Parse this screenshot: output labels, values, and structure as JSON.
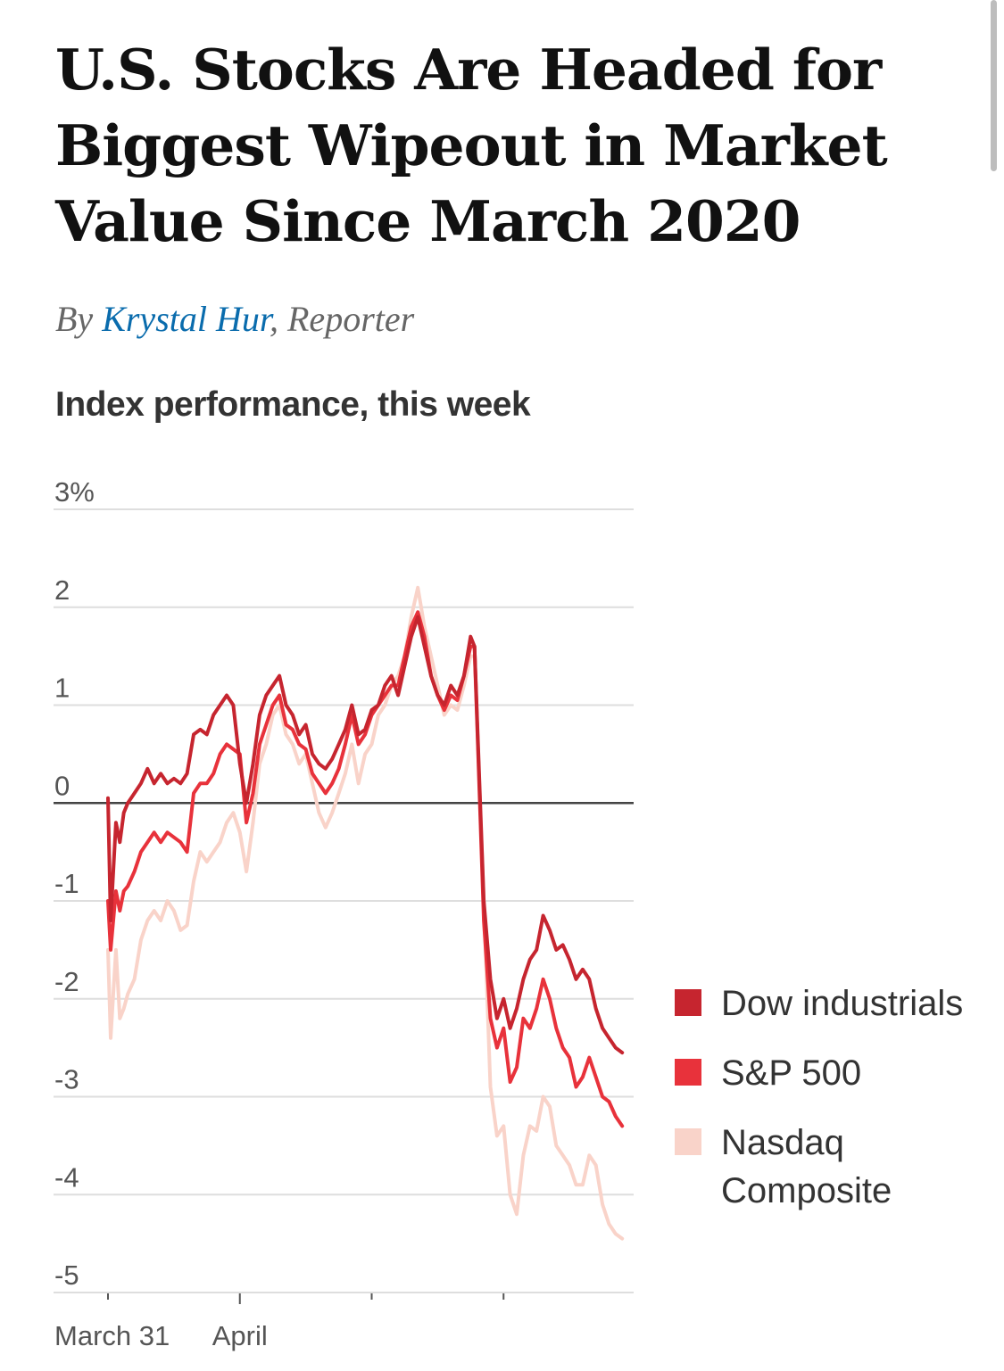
{
  "headline": "U.S. Stocks Are Headed for Biggest Wipeout in Market Value Since March 2020",
  "byline": {
    "prefix": "By ",
    "author": "Krystal Hur",
    "suffix": ", Reporter"
  },
  "chart_data": {
    "type": "line",
    "title": "Index performance, this week",
    "ylabel": "",
    "xlabel": "",
    "ylim": [
      -5,
      3
    ],
    "y_ticks": [
      {
        "value": 3,
        "label": "3%"
      },
      {
        "value": 2,
        "label": "2"
      },
      {
        "value": 1,
        "label": "1"
      },
      {
        "value": 0,
        "label": "0"
      },
      {
        "value": -1,
        "label": "-1"
      },
      {
        "value": -2,
        "label": "-2"
      },
      {
        "value": -3,
        "label": "-3"
      },
      {
        "value": -4,
        "label": "-4"
      },
      {
        "value": -5,
        "label": "-5"
      }
    ],
    "x_range": [
      0,
      4
    ],
    "x_ticks": [
      {
        "value": 0,
        "label": "March 31"
      },
      {
        "value": 1,
        "label": "April"
      },
      {
        "value": 2,
        "label": ""
      },
      {
        "value": 3,
        "label": ""
      }
    ],
    "legend_position": "right",
    "series": [
      {
        "name": "Nasdaq Composite",
        "color": "#f9d3c9",
        "points": [
          [
            0.0,
            -1.5
          ],
          [
            0.02,
            -2.4
          ],
          [
            0.06,
            -1.5
          ],
          [
            0.09,
            -2.2
          ],
          [
            0.12,
            -2.1
          ],
          [
            0.15,
            -1.95
          ],
          [
            0.2,
            -1.8
          ],
          [
            0.25,
            -1.4
          ],
          [
            0.3,
            -1.2
          ],
          [
            0.35,
            -1.1
          ],
          [
            0.4,
            -1.2
          ],
          [
            0.45,
            -1.0
          ],
          [
            0.5,
            -1.1
          ],
          [
            0.55,
            -1.3
          ],
          [
            0.6,
            -1.25
          ],
          [
            0.65,
            -0.8
          ],
          [
            0.7,
            -0.5
          ],
          [
            0.75,
            -0.6
          ],
          [
            0.8,
            -0.5
          ],
          [
            0.85,
            -0.4
          ],
          [
            0.9,
            -0.2
          ],
          [
            0.95,
            -0.1
          ],
          [
            1.0,
            -0.3
          ],
          [
            1.05,
            -0.7
          ],
          [
            1.1,
            -0.2
          ],
          [
            1.15,
            0.4
          ],
          [
            1.2,
            0.6
          ],
          [
            1.25,
            0.9
          ],
          [
            1.3,
            1.0
          ],
          [
            1.35,
            0.7
          ],
          [
            1.4,
            0.6
          ],
          [
            1.45,
            0.4
          ],
          [
            1.5,
            0.5
          ],
          [
            1.55,
            0.2
          ],
          [
            1.6,
            -0.1
          ],
          [
            1.65,
            -0.25
          ],
          [
            1.7,
            -0.1
          ],
          [
            1.75,
            0.1
          ],
          [
            1.8,
            0.3
          ],
          [
            1.85,
            0.6
          ],
          [
            1.9,
            0.2
          ],
          [
            1.95,
            0.5
          ],
          [
            2.0,
            0.6
          ],
          [
            2.05,
            0.9
          ],
          [
            2.1,
            1.0
          ],
          [
            2.15,
            1.2
          ],
          [
            2.2,
            1.3
          ],
          [
            2.25,
            1.5
          ],
          [
            2.3,
            1.9
          ],
          [
            2.35,
            2.2
          ],
          [
            2.4,
            1.8
          ],
          [
            2.45,
            1.5
          ],
          [
            2.5,
            1.2
          ],
          [
            2.55,
            0.9
          ],
          [
            2.6,
            1.0
          ],
          [
            2.65,
            0.95
          ],
          [
            2.7,
            1.2
          ],
          [
            2.75,
            1.5
          ],
          [
            2.78,
            1.5
          ],
          [
            2.85,
            -1.0
          ],
          [
            2.9,
            -2.9
          ],
          [
            2.95,
            -3.4
          ],
          [
            3.0,
            -3.3
          ],
          [
            3.05,
            -4.0
          ],
          [
            3.1,
            -4.2
          ],
          [
            3.15,
            -3.6
          ],
          [
            3.2,
            -3.3
          ],
          [
            3.25,
            -3.35
          ],
          [
            3.3,
            -3.0
          ],
          [
            3.35,
            -3.1
          ],
          [
            3.4,
            -3.5
          ],
          [
            3.45,
            -3.6
          ],
          [
            3.5,
            -3.7
          ],
          [
            3.55,
            -3.9
          ],
          [
            3.6,
            -3.9
          ],
          [
            3.65,
            -3.6
          ],
          [
            3.7,
            -3.7
          ],
          [
            3.75,
            -4.1
          ],
          [
            3.8,
            -4.3
          ],
          [
            3.85,
            -4.4
          ],
          [
            3.9,
            -4.45
          ]
        ]
      },
      {
        "name": "S&P 500",
        "color": "#e8323b",
        "points": [
          [
            0.0,
            -1.0
          ],
          [
            0.02,
            -1.5
          ],
          [
            0.06,
            -0.9
          ],
          [
            0.09,
            -1.1
          ],
          [
            0.12,
            -0.9
          ],
          [
            0.15,
            -0.85
          ],
          [
            0.2,
            -0.7
          ],
          [
            0.25,
            -0.5
          ],
          [
            0.3,
            -0.4
          ],
          [
            0.35,
            -0.3
          ],
          [
            0.4,
            -0.4
          ],
          [
            0.45,
            -0.3
          ],
          [
            0.5,
            -0.35
          ],
          [
            0.55,
            -0.4
          ],
          [
            0.6,
            -0.5
          ],
          [
            0.65,
            0.1
          ],
          [
            0.7,
            0.2
          ],
          [
            0.75,
            0.2
          ],
          [
            0.8,
            0.3
          ],
          [
            0.85,
            0.5
          ],
          [
            0.9,
            0.6
          ],
          [
            0.95,
            0.55
          ],
          [
            1.0,
            0.5
          ],
          [
            1.05,
            -0.2
          ],
          [
            1.1,
            0.1
          ],
          [
            1.15,
            0.6
          ],
          [
            1.2,
            0.8
          ],
          [
            1.25,
            1.0
          ],
          [
            1.3,
            1.1
          ],
          [
            1.35,
            0.8
          ],
          [
            1.4,
            0.75
          ],
          [
            1.45,
            0.6
          ],
          [
            1.5,
            0.55
          ],
          [
            1.55,
            0.3
          ],
          [
            1.6,
            0.2
          ],
          [
            1.65,
            0.1
          ],
          [
            1.7,
            0.2
          ],
          [
            1.75,
            0.35
          ],
          [
            1.8,
            0.6
          ],
          [
            1.85,
            0.9
          ],
          [
            1.9,
            0.6
          ],
          [
            1.95,
            0.7
          ],
          [
            2.0,
            0.9
          ],
          [
            2.05,
            1.0
          ],
          [
            2.1,
            1.1
          ],
          [
            2.15,
            1.2
          ],
          [
            2.2,
            1.2
          ],
          [
            2.25,
            1.5
          ],
          [
            2.3,
            1.8
          ],
          [
            2.35,
            1.95
          ],
          [
            2.4,
            1.7
          ],
          [
            2.45,
            1.3
          ],
          [
            2.5,
            1.1
          ],
          [
            2.55,
            0.95
          ],
          [
            2.6,
            1.1
          ],
          [
            2.65,
            1.05
          ],
          [
            2.7,
            1.3
          ],
          [
            2.75,
            1.6
          ],
          [
            2.78,
            1.6
          ],
          [
            2.85,
            -1.2
          ],
          [
            2.9,
            -2.2
          ],
          [
            2.95,
            -2.5
          ],
          [
            3.0,
            -2.3
          ],
          [
            3.05,
            -2.85
          ],
          [
            3.1,
            -2.7
          ],
          [
            3.15,
            -2.2
          ],
          [
            3.2,
            -2.3
          ],
          [
            3.25,
            -2.1
          ],
          [
            3.3,
            -1.8
          ],
          [
            3.35,
            -2.0
          ],
          [
            3.4,
            -2.3
          ],
          [
            3.45,
            -2.5
          ],
          [
            3.5,
            -2.6
          ],
          [
            3.55,
            -2.9
          ],
          [
            3.6,
            -2.8
          ],
          [
            3.65,
            -2.6
          ],
          [
            3.7,
            -2.8
          ],
          [
            3.75,
            -3.0
          ],
          [
            3.8,
            -3.05
          ],
          [
            3.85,
            -3.2
          ],
          [
            3.9,
            -3.3
          ]
        ]
      },
      {
        "name": "Dow industrials",
        "color": "#c6252f",
        "points": [
          [
            0.0,
            0.05
          ],
          [
            0.02,
            -1.2
          ],
          [
            0.06,
            -0.2
          ],
          [
            0.09,
            -0.4
          ],
          [
            0.12,
            -0.1
          ],
          [
            0.15,
            0.0
          ],
          [
            0.2,
            0.1
          ],
          [
            0.25,
            0.2
          ],
          [
            0.3,
            0.35
          ],
          [
            0.35,
            0.2
          ],
          [
            0.4,
            0.3
          ],
          [
            0.45,
            0.2
          ],
          [
            0.5,
            0.25
          ],
          [
            0.55,
            0.2
          ],
          [
            0.6,
            0.3
          ],
          [
            0.65,
            0.7
          ],
          [
            0.7,
            0.75
          ],
          [
            0.75,
            0.7
          ],
          [
            0.8,
            0.9
          ],
          [
            0.85,
            1.0
          ],
          [
            0.9,
            1.1
          ],
          [
            0.95,
            1.0
          ],
          [
            1.0,
            0.4
          ],
          [
            1.05,
            0.0
          ],
          [
            1.1,
            0.4
          ],
          [
            1.15,
            0.9
          ],
          [
            1.2,
            1.1
          ],
          [
            1.25,
            1.2
          ],
          [
            1.3,
            1.3
          ],
          [
            1.35,
            1.0
          ],
          [
            1.4,
            0.9
          ],
          [
            1.45,
            0.7
          ],
          [
            1.5,
            0.8
          ],
          [
            1.55,
            0.5
          ],
          [
            1.6,
            0.4
          ],
          [
            1.65,
            0.35
          ],
          [
            1.7,
            0.45
          ],
          [
            1.75,
            0.6
          ],
          [
            1.8,
            0.75
          ],
          [
            1.85,
            1.0
          ],
          [
            1.9,
            0.7
          ],
          [
            1.95,
            0.75
          ],
          [
            2.0,
            0.95
          ],
          [
            2.05,
            1.0
          ],
          [
            2.1,
            1.2
          ],
          [
            2.15,
            1.3
          ],
          [
            2.2,
            1.1
          ],
          [
            2.25,
            1.4
          ],
          [
            2.3,
            1.7
          ],
          [
            2.35,
            1.9
          ],
          [
            2.4,
            1.6
          ],
          [
            2.45,
            1.3
          ],
          [
            2.5,
            1.1
          ],
          [
            2.55,
            1.0
          ],
          [
            2.6,
            1.2
          ],
          [
            2.65,
            1.1
          ],
          [
            2.7,
            1.3
          ],
          [
            2.75,
            1.7
          ],
          [
            2.78,
            1.6
          ],
          [
            2.85,
            -1.0
          ],
          [
            2.9,
            -1.8
          ],
          [
            2.95,
            -2.2
          ],
          [
            3.0,
            -2.0
          ],
          [
            3.05,
            -2.3
          ],
          [
            3.1,
            -2.1
          ],
          [
            3.15,
            -1.8
          ],
          [
            3.2,
            -1.6
          ],
          [
            3.25,
            -1.5
          ],
          [
            3.3,
            -1.15
          ],
          [
            3.35,
            -1.3
          ],
          [
            3.4,
            -1.5
          ],
          [
            3.45,
            -1.45
          ],
          [
            3.5,
            -1.6
          ],
          [
            3.55,
            -1.8
          ],
          [
            3.6,
            -1.7
          ],
          [
            3.65,
            -1.8
          ],
          [
            3.7,
            -2.1
          ],
          [
            3.75,
            -2.3
          ],
          [
            3.8,
            -2.4
          ],
          [
            3.85,
            -2.5
          ],
          [
            3.9,
            -2.55
          ]
        ]
      }
    ],
    "legend": [
      {
        "label": "Dow industrials",
        "color": "#c6252f"
      },
      {
        "label": "S&P 500",
        "color": "#e8323b"
      },
      {
        "label": "Nasdaq Composite",
        "color": "#f9d3c9"
      }
    ]
  }
}
